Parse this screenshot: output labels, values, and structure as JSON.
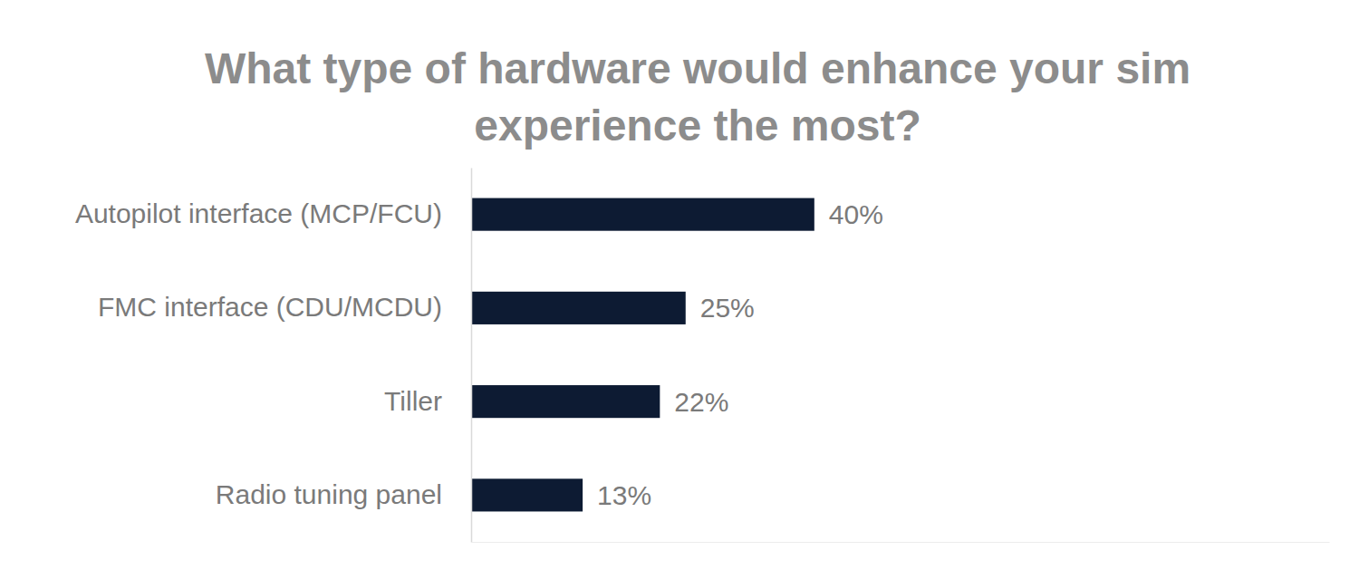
{
  "chart_data": {
    "type": "bar",
    "orientation": "horizontal",
    "title": "What type of hardware would enhance your sim experience the most?",
    "categories": [
      "Autopilot interface (MCP/FCU)",
      "FMC interface (CDU/MCDU)",
      "Tiller",
      "Radio tuning panel"
    ],
    "values": [
      40,
      25,
      22,
      13
    ],
    "value_labels": [
      "40%",
      "25%",
      "22%",
      "13%"
    ],
    "color": "#0d1b33",
    "xlim": [
      0,
      100
    ],
    "data_labels": true,
    "tick_labels": "y",
    "grid": false
  }
}
